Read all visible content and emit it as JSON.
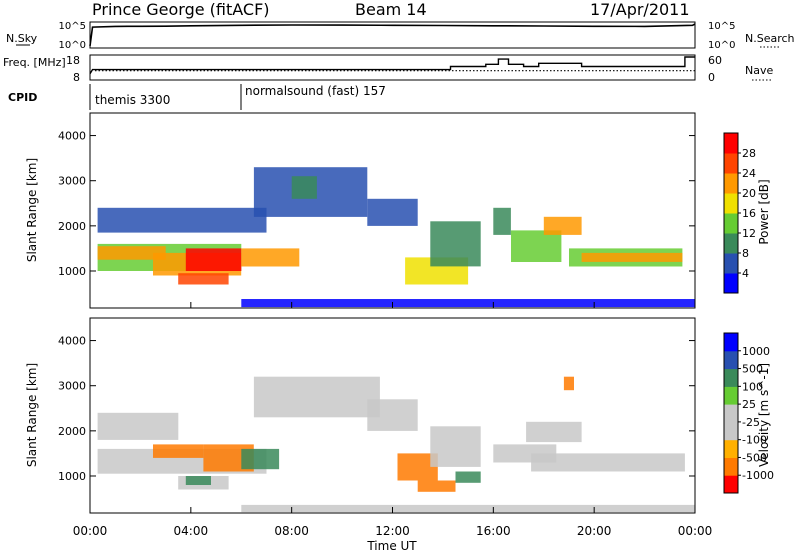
{
  "header": {
    "station": "Prince George (fitACF)",
    "beam": "Beam 14",
    "date": "17/Apr/2011"
  },
  "colors": {
    "power_scale": [
      "#0000ff",
      "#2850b0",
      "#3a8a5a",
      "#66cc33",
      "#f0e000",
      "#ff9900",
      "#ff4400",
      "#ff0000"
    ],
    "velocity_scale": [
      "#ff0000",
      "#ff7a00",
      "#ffb000",
      "#c8c8c8",
      "#c8c8c8",
      "#66cc33",
      "#3a8a5a",
      "#2850b0",
      "#0000ff"
    ]
  },
  "chart_data": [
    {
      "type": "line",
      "panel": "noise",
      "left_label": "N.Sky",
      "right_label": "N.Search",
      "left_ticks": [
        "10^5",
        "10^0"
      ],
      "right_ticks": [
        "10^5",
        "10^0"
      ],
      "x": [
        0,
        0.1,
        1,
        2,
        3,
        4,
        6,
        8,
        10,
        12,
        14,
        16,
        18,
        20,
        22,
        23.9,
        24
      ],
      "values": [
        1,
        20000,
        28000,
        30000,
        32000,
        40000,
        50000,
        60000,
        55000,
        50000,
        45000,
        40000,
        35000,
        30000,
        28000,
        50000,
        100000
      ]
    },
    {
      "type": "line",
      "panel": "frequency",
      "left_label": "Freq. [MHz]",
      "right_label": "Nave",
      "left_ticks": [
        "18",
        "8"
      ],
      "right_ticks": [
        "60",
        "0"
      ],
      "series": [
        {
          "x": [
            0,
            0.1,
            14.3,
            14.3,
            15.7,
            15.7,
            16.2,
            16.2,
            16.6,
            16.6,
            17.2,
            17.2,
            17.8,
            17.8,
            19.5,
            19.5,
            23.6,
            23.6,
            24
          ],
          "values": [
            10,
            12,
            12,
            13.5,
            13.5,
            14.5,
            14.5,
            17,
            17,
            14.5,
            14.5,
            13.5,
            13.5,
            15,
            15,
            13.5,
            13.5,
            18,
            18
          ]
        },
        {
          "x": [
            0.2,
            24
          ],
          "values": [
            11.5,
            11.5
          ],
          "style": "dotted"
        }
      ]
    },
    {
      "type": "table",
      "panel": "cpid",
      "label": "CPID",
      "segments": [
        {
          "start": 0,
          "end": 6,
          "name": "themis 3300"
        },
        {
          "start": 6,
          "end": 24,
          "name": "normalsound (fast) 157"
        }
      ]
    },
    {
      "type": "heatmap",
      "panel": "power",
      "ylabel": "Slant Range [km]",
      "yticks": [
        1000,
        2000,
        3000,
        4000
      ],
      "ylim": [
        180,
        4500
      ],
      "colorbar_label": "Power [dB]",
      "colorbar_ticks": [
        "4",
        "8",
        "12",
        "16",
        "20",
        "24",
        "28"
      ],
      "clim": [
        0,
        30
      ],
      "patches": [
        {
          "t": [
            0.3,
            6.0
          ],
          "r": [
            1000,
            1600
          ],
          "v": 14
        },
        {
          "t": [
            0.3,
            3.0
          ],
          "r": [
            1250,
            1550
          ],
          "v": 22
        },
        {
          "t": [
            2.5,
            6.0
          ],
          "r": [
            900,
            1400
          ],
          "v": 22
        },
        {
          "t": [
            3.8,
            6.0
          ],
          "r": [
            1000,
            1500
          ],
          "v": 28
        },
        {
          "t": [
            3.5,
            5.5
          ],
          "r": [
            700,
            950
          ],
          "v": 25
        },
        {
          "t": [
            0.3,
            7.0
          ],
          "r": [
            1850,
            2400
          ],
          "v": 6
        },
        {
          "t": [
            6.0,
            8.3
          ],
          "r": [
            1100,
            1500
          ],
          "v": 20
        },
        {
          "t": [
            6.5,
            11.0
          ],
          "r": [
            2200,
            3300
          ],
          "v": 7
        },
        {
          "t": [
            8.0,
            9.0
          ],
          "r": [
            2600,
            3100
          ],
          "v": 9
        },
        {
          "t": [
            11.0,
            13.0
          ],
          "r": [
            2000,
            2600
          ],
          "v": 5
        },
        {
          "t": [
            12.5,
            15.0
          ],
          "r": [
            700,
            1300
          ],
          "v": 18
        },
        {
          "t": [
            13.5,
            15.5
          ],
          "r": [
            1100,
            2100
          ],
          "v": 8
        },
        {
          "t": [
            16.0,
            16.7
          ],
          "r": [
            1800,
            2400
          ],
          "v": 10
        },
        {
          "t": [
            16.7,
            18.7
          ],
          "r": [
            1200,
            1900
          ],
          "v": 14
        },
        {
          "t": [
            18.0,
            19.5
          ],
          "r": [
            1800,
            2200
          ],
          "v": 20
        },
        {
          "t": [
            19.0,
            23.5
          ],
          "r": [
            1100,
            1500
          ],
          "v": 14
        },
        {
          "t": [
            19.5,
            23.5
          ],
          "r": [
            1200,
            1400
          ],
          "v": 20
        },
        {
          "t": [
            6.0,
            24.0
          ],
          "r": [
            200,
            380
          ],
          "v": 3
        }
      ]
    },
    {
      "type": "heatmap",
      "panel": "velocity",
      "ylabel": "Slant Range [km]",
      "xlabel": "Time UT",
      "yticks": [
        1000,
        2000,
        3000,
        4000
      ],
      "ylim": [
        180,
        4500
      ],
      "xticks": [
        "00:00",
        "04:00",
        "08:00",
        "12:00",
        "16:00",
        "20:00",
        "00:00"
      ],
      "xtick_hours": [
        0,
        4,
        8,
        12,
        16,
        20,
        24
      ],
      "colorbar_label": "Velocity [m s^-1]",
      "colorbar_ticks": [
        "-1000",
        "-500",
        "-100",
        "-25",
        "25",
        "100",
        "500",
        "1000"
      ],
      "patches": [
        {
          "t": [
            0.3,
            7.0
          ],
          "r": [
            1050,
            1600
          ],
          "v": 0
        },
        {
          "t": [
            0.3,
            3.5
          ],
          "r": [
            1800,
            2400
          ],
          "v": 0
        },
        {
          "t": [
            2.5,
            4.5
          ],
          "r": [
            1400,
            1700
          ],
          "v": -150
        },
        {
          "t": [
            4.5,
            6.5
          ],
          "r": [
            1100,
            1700
          ],
          "v": -200
        },
        {
          "t": [
            6.0,
            7.5
          ],
          "r": [
            1150,
            1600
          ],
          "v": 200
        },
        {
          "t": [
            3.5,
            5.5
          ],
          "r": [
            700,
            1000
          ],
          "v": 0
        },
        {
          "t": [
            3.8,
            4.8
          ],
          "r": [
            800,
            1000
          ],
          "v": 120
        },
        {
          "t": [
            6.5,
            11.5
          ],
          "r": [
            2300,
            3200
          ],
          "v": 0
        },
        {
          "t": [
            11.0,
            13.0
          ],
          "r": [
            2000,
            2700
          ],
          "v": 0
        },
        {
          "t": [
            12.2,
            13.8
          ],
          "r": [
            900,
            1500
          ],
          "v": -200
        },
        {
          "t": [
            13.0,
            14.5
          ],
          "r": [
            650,
            900
          ],
          "v": -200
        },
        {
          "t": [
            14.5,
            15.5
          ],
          "r": [
            850,
            1100
          ],
          "v": 120
        },
        {
          "t": [
            13.5,
            15.5
          ],
          "r": [
            1200,
            2100
          ],
          "v": 0
        },
        {
          "t": [
            16.0,
            18.5
          ],
          "r": [
            1300,
            1700
          ],
          "v": 0
        },
        {
          "t": [
            17.5,
            23.6
          ],
          "r": [
            1100,
            1500
          ],
          "v": 0
        },
        {
          "t": [
            17.3,
            19.5
          ],
          "r": [
            1750,
            2200
          ],
          "v": 0
        },
        {
          "t": [
            18.8,
            19.2
          ],
          "r": [
            2900,
            3200
          ],
          "v": -200
        },
        {
          "t": [
            6.0,
            24.0
          ],
          "r": [
            200,
            360
          ],
          "v": 0
        }
      ]
    }
  ]
}
